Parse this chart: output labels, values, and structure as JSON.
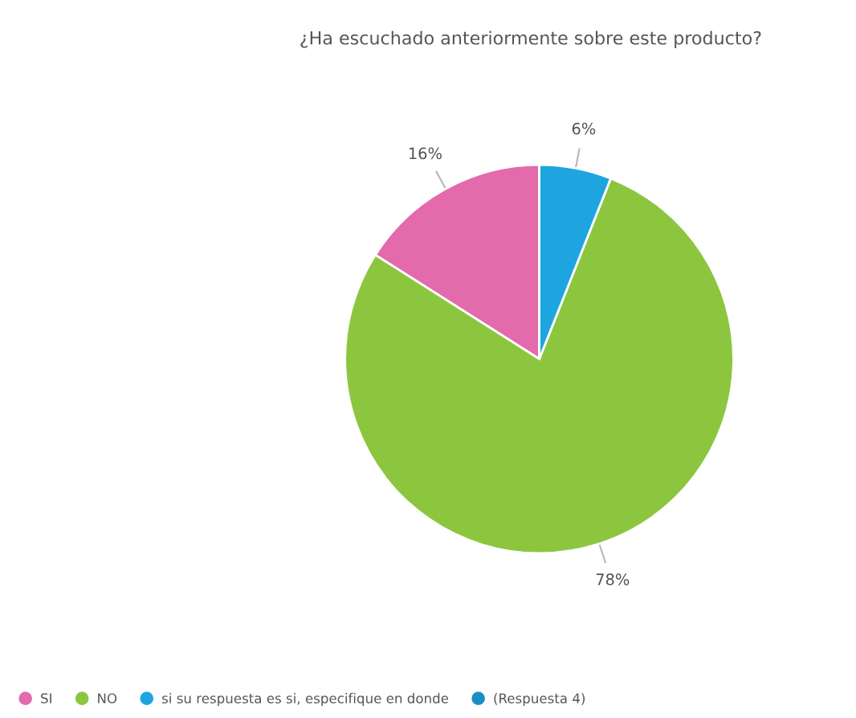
{
  "chart_data": {
    "type": "pie",
    "title": "¿Ha escuchado anteriormente sobre este producto?",
    "categories": [
      "SI",
      "NO",
      "si su respuesta es si, especifique en donde",
      "(Respuesta 4)"
    ],
    "values": [
      16,
      78,
      6,
      0
    ],
    "colors": [
      "#e36aab",
      "#8cc63f",
      "#1ea5e0",
      "#1a8fc4"
    ],
    "value_labels": [
      "16%",
      "78%",
      "6%",
      null
    ],
    "legend": "bottom"
  }
}
